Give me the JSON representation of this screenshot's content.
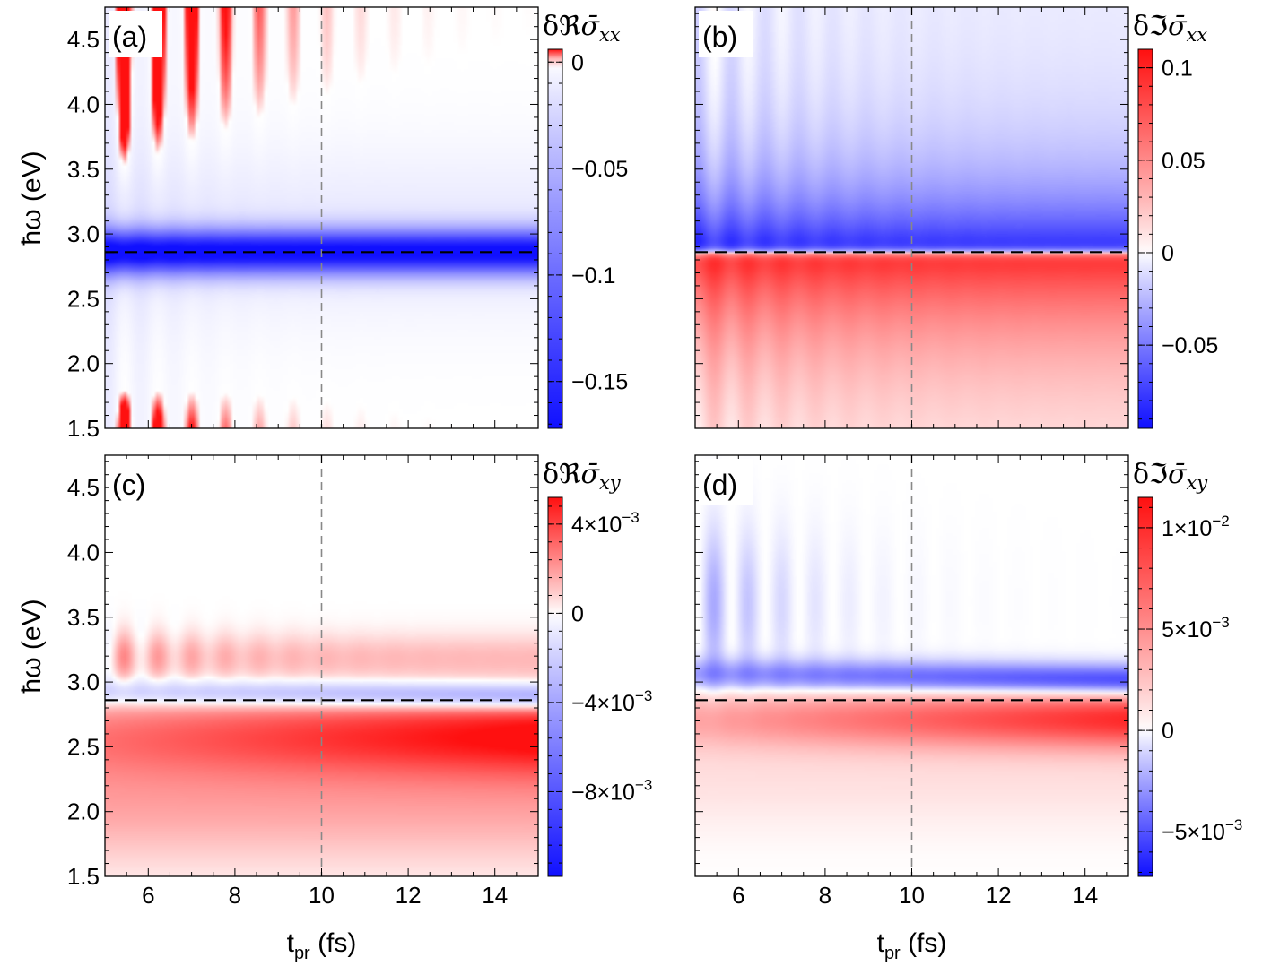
{
  "chart_data": [
    {
      "type": "heatmap",
      "panel_label": "(a)",
      "title": "",
      "xlabel": "",
      "ylabel": "ħω (eV)",
      "xlim": [
        5,
        15
      ],
      "ylim": [
        1.5,
        4.75
      ],
      "x_ticks": [
        6,
        8,
        10,
        12,
        14
      ],
      "y_tick_labels": [
        "1.5",
        "2.0",
        "2.5",
        "3.0",
        "3.5",
        "4.0",
        "4.5"
      ],
      "colorbar": {
        "label_prefix": "δ",
        "label_letter": "ℜ",
        "label_symbol": "σ̄",
        "label_sub": "xx",
        "range": [
          -0.172,
          0.006
        ],
        "ticks": [
          0,
          -0.05,
          -0.1,
          -0.15
        ],
        "tick_labels": [
          "0",
          "−0.05",
          "−0.1",
          "−0.15"
        ]
      },
      "reference_lines": {
        "vertical_t_fs": 10,
        "horizontal_energy_eV": 2.86
      },
      "features": [
        {
          "description": "negative absorption band",
          "energy_eV": 2.86,
          "peak_value": -0.17
        }
      ]
    },
    {
      "type": "heatmap",
      "panel_label": "(b)",
      "title": "",
      "xlabel": "",
      "ylabel": "",
      "xlim": [
        5,
        15
      ],
      "ylim": [
        1.5,
        4.75
      ],
      "colorbar": {
        "label_prefix": "δ",
        "label_letter": "ℑ",
        "label_symbol": "σ̄",
        "label_sub": "xx",
        "range": [
          -0.095,
          0.11
        ],
        "ticks": [
          0.1,
          0.05,
          0,
          -0.05
        ],
        "tick_labels": [
          "0.1",
          "0.05",
          "0",
          "−0.05"
        ]
      },
      "reference_lines": {
        "vertical_t_fs": 10,
        "horizontal_energy_eV": 2.86
      },
      "features": [
        {
          "description": "negative band above resonance",
          "energy_eV": 3.0,
          "peak_value": -0.09
        },
        {
          "description": "positive band below resonance",
          "energy_eV": 2.7,
          "peak_value": 0.11
        }
      ]
    },
    {
      "type": "heatmap",
      "panel_label": "(c)",
      "title": "",
      "xlabel": "t_pr (fs)",
      "ylabel": "ħω (eV)",
      "xlim": [
        5,
        15
      ],
      "ylim": [
        1.5,
        4.75
      ],
      "x_ticks": [
        6,
        8,
        10,
        12,
        14
      ],
      "y_tick_labels": [
        "1.5",
        "2.0",
        "2.5",
        "3.0",
        "3.5",
        "4.0",
        "4.5"
      ],
      "x_tick_labels": [
        "6",
        "8",
        "10",
        "12",
        "14"
      ],
      "colorbar": {
        "label_prefix": "δ",
        "label_letter": "ℜ",
        "label_symbol": "σ̄",
        "label_sub": "xy",
        "range": [
          -0.0118,
          0.0052
        ],
        "ticks": [
          0.004,
          0,
          -0.004,
          -0.008
        ],
        "tick_mantissa": [
          "4",
          "0",
          "−4",
          "−8"
        ],
        "tick_exponent": [
          "−3",
          "",
          "−3",
          "−3"
        ],
        "tick_times": "×10"
      },
      "reference_lines": {
        "vertical_t_fs": 10,
        "horizontal_energy_eV": 2.86
      },
      "features": [
        {
          "description": "negative band",
          "energy_eV": 2.9,
          "peak_value": -0.0055
        },
        {
          "description": "positive band",
          "energy_eV": 2.57,
          "peak_value": 0.005
        }
      ]
    },
    {
      "type": "heatmap",
      "panel_label": "(d)",
      "title": "",
      "xlabel": "t_pr (fs)",
      "ylabel": "",
      "xlim": [
        5,
        15
      ],
      "ylim": [
        1.5,
        4.75
      ],
      "x_tick_labels": [
        "6",
        "8",
        "10",
        "12",
        "14"
      ],
      "colorbar": {
        "label_prefix": "δ",
        "label_letter": "ℑ",
        "label_symbol": "σ̄",
        "label_sub": "xy",
        "range": [
          -0.0072,
          0.0115
        ],
        "ticks": [
          0.01,
          0.005,
          0,
          -0.005
        ],
        "tick_mantissa": [
          "1",
          "5",
          "0",
          "−5"
        ],
        "tick_exponent": [
          "−2",
          "−3",
          "",
          "−3"
        ],
        "tick_times": "×10"
      },
      "reference_lines": {
        "vertical_t_fs": 10,
        "horizontal_energy_eV": 2.86
      },
      "features": [
        {
          "description": "negative band",
          "energy_eV": 3.05,
          "peak_value": -0.007
        },
        {
          "description": "positive band",
          "energy_eV": 2.7,
          "peak_value": 0.0098
        }
      ]
    }
  ],
  "xlabel_base": "t",
  "xlabel_sub": "pr",
  "xlabel_unit": " (fs)",
  "ylabel_text": "ħω (eV)",
  "colors": {
    "negative": "#1010ff",
    "positive": "#ff1010",
    "zero": "#ffffff",
    "frame": "#000000",
    "reference": "#888888"
  }
}
